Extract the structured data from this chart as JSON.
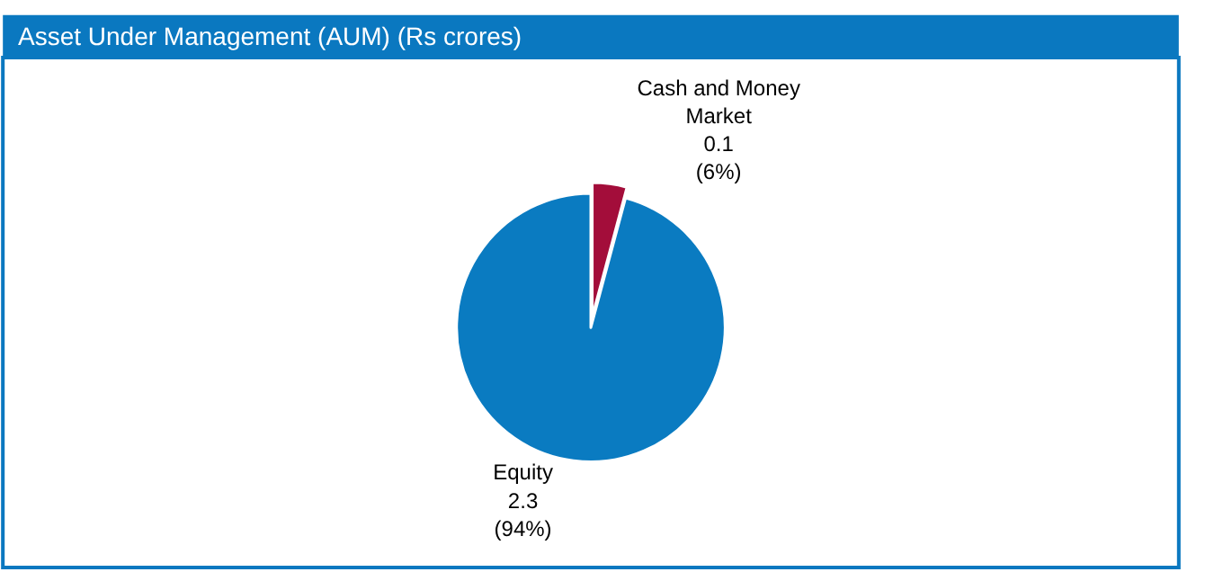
{
  "chart_data": {
    "type": "pie",
    "title": "Asset Under Management (AUM) (Rs crores)",
    "categories": [
      "Cash and Money Market",
      "Equity"
    ],
    "values": [
      0.1,
      2.3
    ],
    "value_labels": [
      "0.1\n(6%)",
      "2.3\n(94%)"
    ],
    "colors": [
      "#a30d3a",
      "#0a7bc1"
    ],
    "legend": false
  }
}
